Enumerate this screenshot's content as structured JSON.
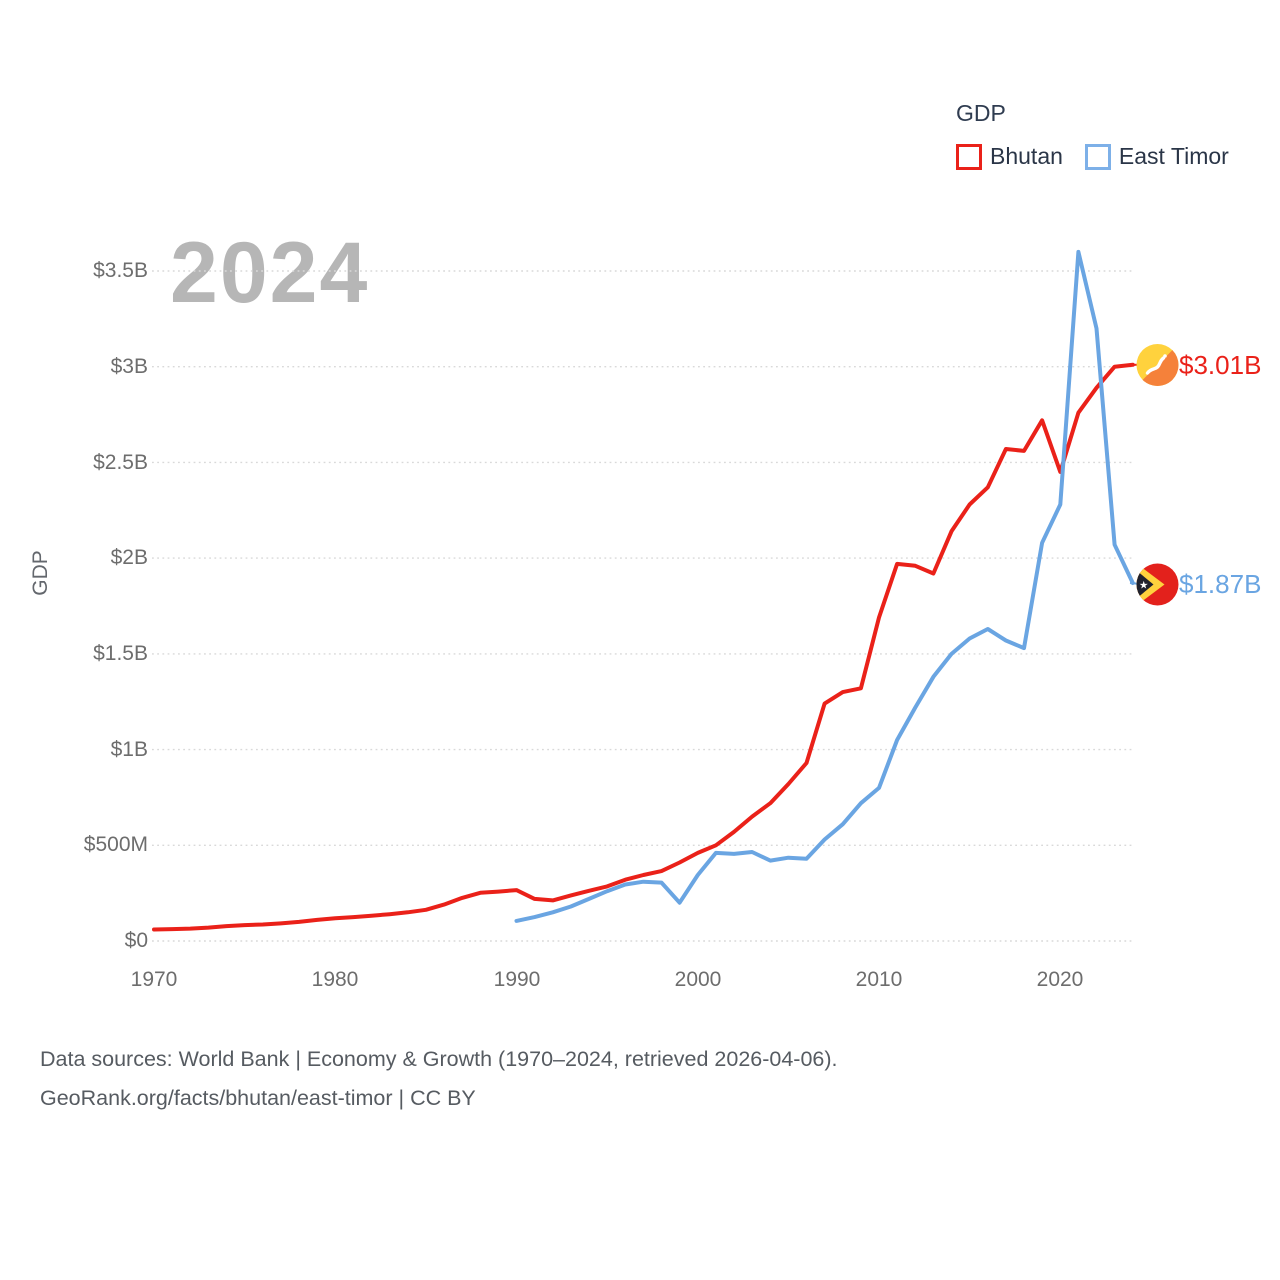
{
  "watermark": "2024",
  "legend": {
    "title": "GDP",
    "items": [
      {
        "label": "Bhutan",
        "color": "#ea2119"
      },
      {
        "label": "East Timor",
        "color": "#6aa5e2"
      }
    ]
  },
  "y_axis": {
    "label": "GDP",
    "ticks": [
      "$0",
      "$500M",
      "$1B",
      "$1.5B",
      "$2B",
      "$2.5B",
      "$3B",
      "$3.5B"
    ]
  },
  "x_axis": {
    "ticks": [
      "1970",
      "1980",
      "1990",
      "2000",
      "2010",
      "2020"
    ]
  },
  "end_labels": [
    {
      "series": "Bhutan",
      "value": "$3.01B",
      "color": "#ea2119",
      "flag_icon": "bhutan-flag-icon"
    },
    {
      "series": "East Timor",
      "value": "$1.87B",
      "color": "#6aa5e2",
      "flag_icon": "east-timor-flag-icon"
    }
  ],
  "footer": {
    "line1": "Data sources: World Bank | Economy & Growth (1970–2024, retrieved 2026-04-06).",
    "line2": "GeoRank.org/facts/bhutan/east-timor | CC BY"
  },
  "chart_data": {
    "type": "line",
    "title": "GDP",
    "unit": "billions USD",
    "xlabel": "",
    "ylabel": "GDP",
    "x_range": [
      1970,
      2024
    ],
    "ylim_billions": [
      0,
      3.5
    ],
    "grid": "horizontal-dotted",
    "legend_position": "top-right",
    "x": [
      1970,
      1971,
      1972,
      1973,
      1974,
      1975,
      1976,
      1977,
      1978,
      1979,
      1980,
      1981,
      1982,
      1983,
      1984,
      1985,
      1986,
      1987,
      1988,
      1989,
      1990,
      1991,
      1992,
      1993,
      1994,
      1995,
      1996,
      1997,
      1998,
      1999,
      2000,
      2001,
      2002,
      2003,
      2004,
      2005,
      2006,
      2007,
      2008,
      2009,
      2010,
      2011,
      2012,
      2013,
      2014,
      2015,
      2016,
      2017,
      2018,
      2019,
      2020,
      2021,
      2022,
      2023,
      2024
    ],
    "series": [
      {
        "name": "Bhutan",
        "color": "#ea2119",
        "final_value_label": "$3.01B",
        "values": [
          0.06,
          0.062,
          0.065,
          0.07,
          0.078,
          0.083,
          0.086,
          0.092,
          0.1,
          0.11,
          0.119,
          0.125,
          0.132,
          0.14,
          0.15,
          0.163,
          0.19,
          0.225,
          0.252,
          0.258,
          0.266,
          0.22,
          0.212,
          0.238,
          0.262,
          0.285,
          0.32,
          0.345,
          0.365,
          0.41,
          0.46,
          0.5,
          0.57,
          0.65,
          0.72,
          0.82,
          0.93,
          1.24,
          1.3,
          1.32,
          1.69,
          1.97,
          1.96,
          1.92,
          2.14,
          2.28,
          2.37,
          2.57,
          2.56,
          2.72,
          2.45,
          2.76,
          2.89,
          3.0,
          3.01
        ]
      },
      {
        "name": "East Timor",
        "color": "#6aa5e2",
        "final_value_label": "$1.87B",
        "values": [
          null,
          null,
          null,
          null,
          null,
          null,
          null,
          null,
          null,
          null,
          null,
          null,
          null,
          null,
          null,
          null,
          null,
          null,
          null,
          null,
          0.105,
          0.125,
          0.15,
          0.18,
          0.22,
          0.26,
          0.295,
          0.31,
          0.305,
          0.2,
          0.345,
          0.46,
          0.455,
          0.465,
          0.42,
          0.435,
          0.43,
          0.53,
          0.61,
          0.72,
          0.8,
          1.05,
          1.22,
          1.38,
          1.5,
          1.58,
          1.63,
          1.57,
          1.53,
          2.08,
          2.28,
          3.6,
          3.2,
          2.07,
          1.87
        ]
      }
    ]
  }
}
